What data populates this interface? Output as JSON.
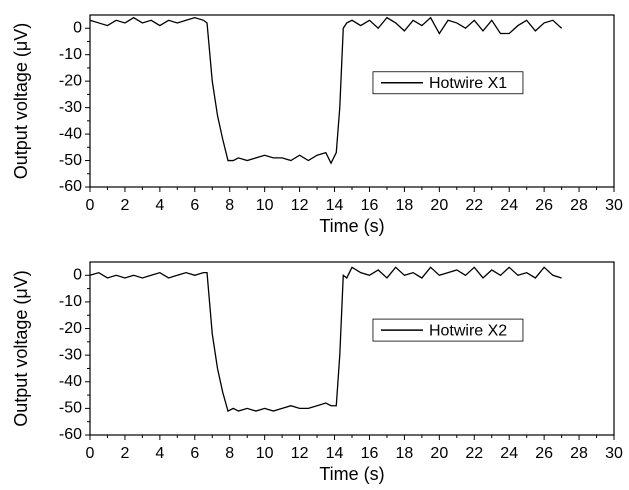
{
  "chart_data": [
    {
      "type": "line",
      "xlabel": "Time (s)",
      "ylabel": "Output voltage (μV)",
      "xlim": [
        0,
        30
      ],
      "xticks": [
        0,
        2,
        4,
        6,
        8,
        10,
        12,
        14,
        16,
        18,
        20,
        22,
        24,
        26,
        28,
        30
      ],
      "ylim": [
        -60,
        5
      ],
      "yticks": [
        -60,
        -50,
        -40,
        -30,
        -20,
        -10,
        0
      ],
      "legend_position": "center right",
      "x": [
        0,
        0.5,
        1,
        1.5,
        2,
        2.5,
        3,
        3.5,
        4,
        4.5,
        5,
        5.5,
        6,
        6.5,
        6.7,
        7.0,
        7.3,
        7.6,
        7.9,
        8.2,
        8.5,
        9,
        9.5,
        10,
        10.5,
        11,
        11.5,
        12,
        12.5,
        13,
        13.5,
        13.8,
        14.1,
        14.3,
        14.5,
        14.7,
        15,
        15.5,
        16,
        16.5,
        17,
        17.5,
        18,
        18.5,
        19,
        19.5,
        20,
        20.5,
        21,
        21.5,
        22,
        22.5,
        23,
        23.5,
        24,
        24.5,
        25,
        25.5,
        26,
        26.5,
        27
      ],
      "series": [
        {
          "name": "Hotwire X1",
          "color": "#000000",
          "values": [
            3,
            2,
            1,
            3,
            2,
            4,
            2,
            3,
            1,
            3,
            2,
            3,
            4,
            3,
            2,
            -20,
            -33,
            -42,
            -50,
            -50,
            -49,
            -50,
            -49,
            -48,
            -49,
            -49,
            -50,
            -48,
            -50,
            -48,
            -47,
            -51,
            -47,
            -30,
            0,
            2,
            3,
            1,
            3,
            0,
            4,
            2,
            -1,
            3,
            1,
            4,
            -2,
            3,
            2,
            0,
            3,
            -1,
            3,
            -2,
            -2,
            1,
            3,
            -1,
            2,
            3,
            0
          ]
        }
      ]
    },
    {
      "type": "line",
      "xlabel": "Time (s)",
      "ylabel": "Output voltage (μV)",
      "xlim": [
        0,
        30
      ],
      "xticks": [
        0,
        2,
        4,
        6,
        8,
        10,
        12,
        14,
        16,
        18,
        20,
        22,
        24,
        26,
        28,
        30
      ],
      "ylim": [
        -60,
        5
      ],
      "yticks": [
        -60,
        -50,
        -40,
        -30,
        -20,
        -10,
        0
      ],
      "legend_position": "center right",
      "x": [
        0,
        0.5,
        1,
        1.5,
        2,
        2.5,
        3,
        3.5,
        4,
        4.5,
        5,
        5.5,
        6,
        6.5,
        6.7,
        7.0,
        7.3,
        7.6,
        7.9,
        8.2,
        8.5,
        9,
        9.5,
        10,
        10.5,
        11,
        11.5,
        12,
        12.5,
        13,
        13.5,
        13.8,
        14.1,
        14.3,
        14.5,
        14.7,
        15,
        15.5,
        16,
        16.5,
        17,
        17.5,
        18,
        18.5,
        19,
        19.5,
        20,
        20.5,
        21,
        21.5,
        22,
        22.5,
        23,
        23.5,
        24,
        24.5,
        25,
        25.5,
        26,
        26.5,
        27
      ],
      "series": [
        {
          "name": "Hotwire X2",
          "color": "#000000",
          "values": [
            0,
            1,
            -1,
            0,
            -1,
            0,
            -1,
            0,
            1,
            -1,
            0,
            1,
            0,
            1,
            1,
            -22,
            -35,
            -44,
            -51,
            -50,
            -51,
            -50,
            -51,
            -50,
            -51,
            -50,
            -49,
            -50,
            -50,
            -49,
            -48,
            -49,
            -49,
            -30,
            0,
            -1,
            3,
            1,
            0,
            2,
            -1,
            3,
            0,
            1,
            -1,
            3,
            0,
            1,
            2,
            0,
            3,
            -1,
            2,
            0,
            3,
            0,
            1,
            -1,
            3,
            0,
            -1
          ]
        }
      ]
    }
  ]
}
